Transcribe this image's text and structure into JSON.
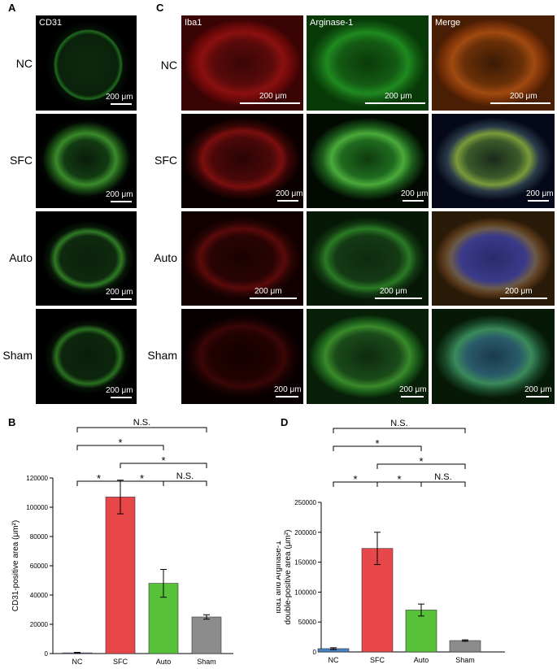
{
  "panels": {
    "A": {
      "letter": "A",
      "stain": "CD31",
      "rows": [
        "NC",
        "SFC",
        "Auto",
        "Sham"
      ],
      "scale": "200 μm"
    },
    "C": {
      "letter": "C",
      "columns": [
        "Iba1",
        "Arginase-1",
        "Merge"
      ],
      "rows": [
        "NC",
        "SFC",
        "Auto",
        "Sham"
      ],
      "scale": "200 μm"
    },
    "B": {
      "letter": "B"
    },
    "D": {
      "letter": "D"
    }
  },
  "chart_data": [
    {
      "type": "bar",
      "panel": "B",
      "categories": [
        "NC",
        "SFC",
        "Auto",
        "Sham"
      ],
      "values": [
        500,
        107000,
        48000,
        25000
      ],
      "errors": [
        300,
        11500,
        9500,
        1500
      ],
      "colors": [
        "#4a7fc1",
        "#e8474a",
        "#57c13a",
        "#8c8c8c"
      ],
      "ylabel": "CD31-positive area (μm²)",
      "ylim": [
        0,
        120000
      ],
      "yticks": [
        "0",
        "20000",
        "40000",
        "60000",
        "80000",
        "100000",
        "120000"
      ],
      "significance": [
        {
          "from": 0,
          "to": 3,
          "label": "N.S.",
          "level": 3
        },
        {
          "from": 0,
          "to": 2,
          "label": "*",
          "level": 2
        },
        {
          "from": 1,
          "to": 3,
          "label": "*",
          "level": 1
        },
        {
          "from": 0,
          "to": 1,
          "label": "*",
          "level": 0
        },
        {
          "from": 1,
          "to": 2,
          "label": "*",
          "level": 0
        },
        {
          "from": 2,
          "to": 3,
          "label": "N.S.",
          "level": 0
        }
      ]
    },
    {
      "type": "bar",
      "panel": "D",
      "categories": [
        "NC",
        "SFC",
        "Auto",
        "Sham"
      ],
      "values": [
        5500,
        173000,
        70000,
        19000
      ],
      "errors": [
        1500,
        27000,
        10000,
        1200
      ],
      "colors": [
        "#4a7fc1",
        "#e8474a",
        "#57c13a",
        "#8c8c8c"
      ],
      "ylabel": "Iba1 and Arginase-1 double-positive area (μm²)",
      "ylabel_lines": [
        "Iba1 and Arginase-1",
        "double-positive area (μm²)"
      ],
      "ylim": [
        0,
        250000
      ],
      "yticks": [
        "0",
        "50000",
        "100000",
        "150000",
        "200000",
        "250000"
      ],
      "significance": [
        {
          "from": 0,
          "to": 3,
          "label": "N.S.",
          "level": 3
        },
        {
          "from": 0,
          "to": 2,
          "label": "*",
          "level": 2
        },
        {
          "from": 1,
          "to": 3,
          "label": "*",
          "level": 1
        },
        {
          "from": 0,
          "to": 1,
          "label": "*",
          "level": 0
        },
        {
          "from": 1,
          "to": 2,
          "label": "*",
          "level": 0
        },
        {
          "from": 2,
          "to": 3,
          "label": "N.S.",
          "level": 0
        }
      ]
    }
  ]
}
